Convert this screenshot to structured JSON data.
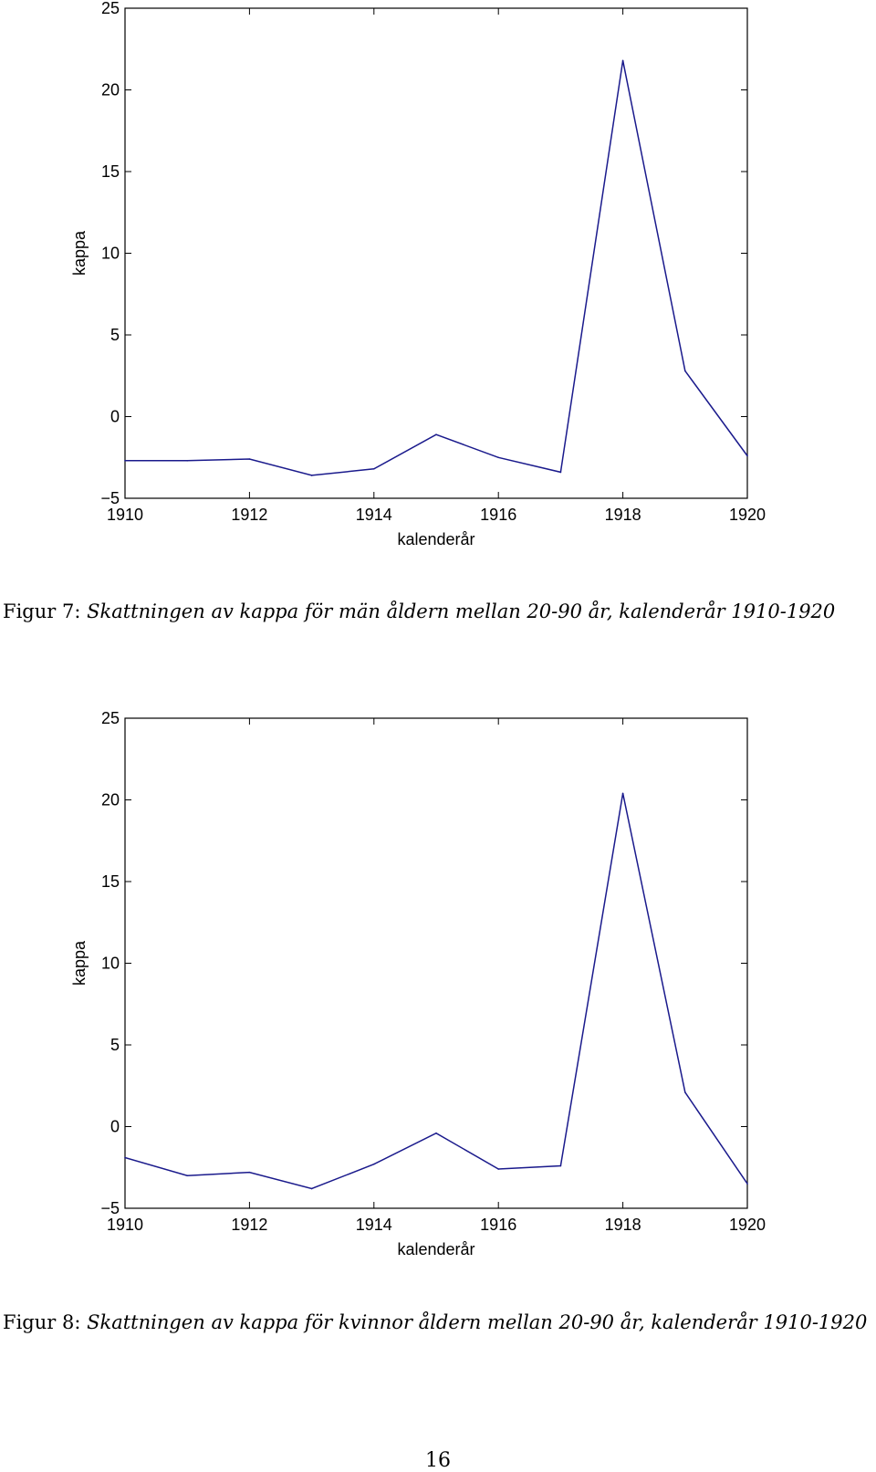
{
  "charts": [
    {
      "caption_prefix": "Figur 7:",
      "caption_text": "Skattningen av kappa för män åldern mellan 20-90 år, kalenderår 1910-1920"
    },
    {
      "caption_prefix": "Figur 8:",
      "caption_text": "Skattningen av kappa för kvinnor åldern mellan 20-90 år, kalenderår 1910-1920"
    }
  ],
  "page_number": "16",
  "colors": {
    "line": "#1a1a8c",
    "axes": "#000000"
  },
  "chart_data": [
    {
      "type": "line",
      "xlabel": "kalenderår",
      "ylabel": "kappa",
      "xlim": [
        1910,
        1920
      ],
      "ylim": [
        -5,
        25
      ],
      "xticks": [
        1910,
        1912,
        1914,
        1916,
        1918,
        1920
      ],
      "xtick_labels": [
        "1910",
        "1912",
        "1914",
        "1916",
        "1918",
        "1920"
      ],
      "yticks": [
        -5,
        0,
        5,
        10,
        15,
        20,
        25
      ],
      "ytick_labels": [
        "−5",
        "0",
        "5",
        "10",
        "15",
        "20",
        "25"
      ],
      "grid": false,
      "x": [
        1910,
        1911,
        1912,
        1913,
        1914,
        1915,
        1916,
        1917,
        1918,
        1919,
        1920
      ],
      "values": [
        -2.7,
        -2.7,
        -2.6,
        -3.6,
        -3.2,
        -1.1,
        -2.5,
        -3.4,
        21.8,
        2.8,
        -2.4
      ]
    },
    {
      "type": "line",
      "xlabel": "kalenderår",
      "ylabel": "kappa",
      "xlim": [
        1910,
        1920
      ],
      "ylim": [
        -5,
        25
      ],
      "xticks": [
        1910,
        1912,
        1914,
        1916,
        1918,
        1920
      ],
      "xtick_labels": [
        "1910",
        "1912",
        "1914",
        "1916",
        "1918",
        "1920"
      ],
      "yticks": [
        -5,
        0,
        5,
        10,
        15,
        20,
        25
      ],
      "ytick_labels": [
        "−5",
        "0",
        "5",
        "10",
        "15",
        "20",
        "25"
      ],
      "grid": false,
      "x": [
        1910,
        1911,
        1912,
        1913,
        1914,
        1915,
        1916,
        1917,
        1918,
        1919,
        1920
      ],
      "values": [
        -1.9,
        -3.0,
        -2.8,
        -3.8,
        -2.3,
        -0.4,
        -2.6,
        -2.4,
        20.4,
        2.1,
        -3.5
      ]
    }
  ]
}
